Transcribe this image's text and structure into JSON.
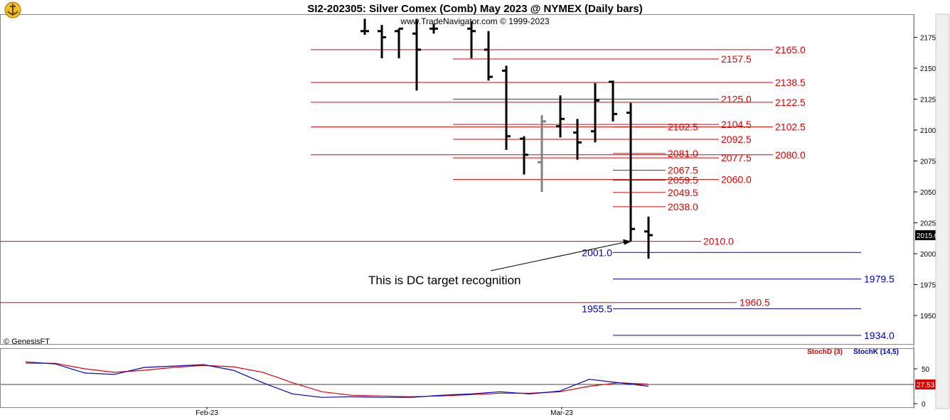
{
  "header": {
    "title": "SI2-202305:  Silver Comex (Comb) May 2023 @ NYMEX  (Daily bars)",
    "subtitle": "www.TradeNavigator.com © 1999-2023",
    "copyright": "© GenesisFT",
    "logo_icon": "anchor-logo-icon"
  },
  "colors": {
    "bars": "#000000",
    "grey_bar": "#808080",
    "red_levels": "#e00000",
    "blue_levels": "#0000c0",
    "stoch_d": "#e00000",
    "stoch_k": "#0000c0"
  },
  "annotation": {
    "text": "This is DC target recognition",
    "target_price": 2010.0
  },
  "chart_data": [
    {
      "type": "bar",
      "name": "price",
      "price_axis": {
        "ylim": [
          1930,
          2185
        ],
        "ticks": [
          1950.0,
          1975.0,
          2000.0,
          2025.0,
          2050.0,
          2075.0,
          2100.0,
          2125.0,
          2150.0,
          2175.0
        ],
        "last_price": 2015.0,
        "last_price_label": "2015.0"
      },
      "x_axis": {
        "labels": [
          "Feb-23",
          "Mar-23"
        ]
      },
      "ohlc": [
        {
          "h": 2190,
          "l": 2177,
          "o": 2180,
          "c": 2180
        },
        {
          "h": 2185,
          "l": 2158,
          "o": 2180,
          "c": 2175
        },
        {
          "h": 2182,
          "l": 2158,
          "o": 2180,
          "c": 2182
        },
        {
          "h": 2190,
          "l": 2132,
          "o": 2178,
          "c": 2165
        },
        {
          "h": 2186,
          "l": 2178,
          "o": 2182,
          "c": 2182
        },
        {
          "h": 2188,
          "l": 2158,
          "o": 2182,
          "c": 2180
        },
        {
          "h": 2180,
          "l": 2140,
          "o": 2165,
          "c": 2143
        },
        {
          "h": 2152,
          "l": 2084,
          "o": 2148,
          "c": 2095
        },
        {
          "h": 2095,
          "l": 2064,
          "o": 2093,
          "c": 2080
        },
        {
          "h": 2112,
          "l": 2050,
          "o": 2074,
          "c": 2107,
          "grey": true
        },
        {
          "h": 2128,
          "l": 2094,
          "o": 2103,
          "c": 2109
        },
        {
          "h": 2109,
          "l": 2076,
          "o": 2098,
          "c": 2090
        },
        {
          "h": 2138,
          "l": 2090,
          "o": 2099,
          "c": 2124
        },
        {
          "h": 2140,
          "l": 2107,
          "o": 2139,
          "c": 2113
        },
        {
          "h": 2122,
          "l": 2010,
          "o": 2114,
          "c": 2020
        },
        {
          "h": 2030,
          "l": 1996,
          "o": 2018,
          "c": 2015
        }
      ],
      "red_levels": [
        {
          "value": 2165.0,
          "label": "2165.0",
          "span": "long"
        },
        {
          "value": 2157.5,
          "label": "2157.5",
          "span": "mid"
        },
        {
          "value": 2138.5,
          "label": "2138.5",
          "span": "long"
        },
        {
          "value": 2125.0,
          "label": "2125.0",
          "span": "mid"
        },
        {
          "value": 2122.5,
          "label": "2122.5",
          "span": "long"
        },
        {
          "value": 2104.5,
          "label": "2104.5",
          "span": "mid"
        },
        {
          "value": 2102.5,
          "label": "2102.5",
          "span": "long"
        },
        {
          "value": 2102.5,
          "label": "2102.5",
          "span": "short"
        },
        {
          "value": 2092.5,
          "label": "2092.5",
          "span": "mid"
        },
        {
          "value": 2081.0,
          "label": "2081.0",
          "span": "short"
        },
        {
          "value": 2080.0,
          "label": "2080.0",
          "span": "long"
        },
        {
          "value": 2077.5,
          "label": "2077.5",
          "span": "mid"
        },
        {
          "value": 2067.5,
          "label": "2067.5",
          "span": "short"
        },
        {
          "value": 2060.0,
          "label": "2060.0",
          "span": "mid"
        },
        {
          "value": 2059.5,
          "label": "2059.5",
          "span": "short"
        },
        {
          "value": 2049.5,
          "label": "2049.5",
          "span": "short"
        },
        {
          "value": 2038.0,
          "label": "2038.0",
          "span": "short"
        },
        {
          "value": 2010.0,
          "label": "2010.0",
          "span": "full"
        },
        {
          "value": 1960.5,
          "label": "1960.5",
          "span": "full"
        }
      ],
      "blue_levels": [
        {
          "value": 2001.0,
          "label": "2001.0",
          "span": "right"
        },
        {
          "value": 1979.5,
          "label": "1979.5",
          "span": "right"
        },
        {
          "value": 1955.5,
          "label": "1955.5",
          "span": "right"
        },
        {
          "value": 1934.0,
          "label": "1934.0",
          "span": "right"
        }
      ]
    },
    {
      "type": "line",
      "name": "stochastic",
      "legend": [
        "StochD (3)",
        "StochK (14,5)"
      ],
      "ylim": [
        0,
        100
      ],
      "ticks": [
        0,
        50
      ],
      "reference": 27.53,
      "reference_label": "27.53",
      "series": [
        {
          "name": "StochD (3)",
          "values": [
            58,
            58,
            50,
            45,
            48,
            52,
            55,
            53,
            45,
            30,
            17,
            12,
            11,
            10,
            11,
            13,
            15,
            15,
            17,
            25,
            30,
            28
          ]
        },
        {
          "name": "StochK (14,5)",
          "values": [
            60,
            57,
            44,
            42,
            52,
            54,
            56,
            48,
            30,
            14,
            9,
            10,
            9,
            9,
            12,
            14,
            17,
            14,
            18,
            35,
            30,
            25
          ]
        }
      ]
    }
  ]
}
